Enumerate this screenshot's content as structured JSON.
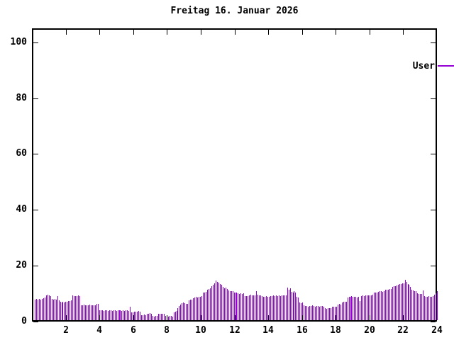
{
  "title": "Freitag 16. Januar 2026",
  "legend": {
    "label": "User",
    "color": "#9400d3",
    "position": "top-right"
  },
  "axes": {
    "y_ticks": [
      0,
      20,
      40,
      60,
      80,
      100
    ],
    "x_ticks": [
      2,
      4,
      6,
      8,
      10,
      12,
      14,
      16,
      18,
      20,
      22,
      24
    ],
    "xlim": [
      0,
      24
    ],
    "ylim": [
      0,
      105
    ]
  },
  "chart_data": {
    "type": "bar",
    "style": "impulses",
    "title": "Freitag 16. Januar 2026",
    "xlabel": "",
    "ylabel": "",
    "xlim": [
      0,
      24
    ],
    "ylim": [
      0,
      105
    ],
    "grid": false,
    "legend_position": "top-right",
    "x_unit": "hour-of-day",
    "x_step_hours": 0.0833333,
    "series": [
      {
        "name": "User",
        "color": "#9400d3",
        "values": [
          7.4,
          7.5,
          7.3,
          7.6,
          7.4,
          7.5,
          7.9,
          8.0,
          8.8,
          9.2,
          9.0,
          8.7,
          7.6,
          7.4,
          7.5,
          7.3,
          8.6,
          7.2,
          6.6,
          6.4,
          6.5,
          6.3,
          6.7,
          6.5,
          6.9,
          6.8,
          7.0,
          8.9,
          8.6,
          8.7,
          8.5,
          8.8,
          8.6,
          5.4,
          5.3,
          5.5,
          5.4,
          5.2,
          5.3,
          5.5,
          5.3,
          5.2,
          5.4,
          5.3,
          5.9,
          5.8,
          3.6,
          3.5,
          3.5,
          3.4,
          3.6,
          3.5,
          3.3,
          3.5,
          3.6,
          3.4,
          3.5,
          3.6,
          3.4,
          3.5,
          3.5,
          3.6,
          3.4,
          3.5,
          3.4,
          3.6,
          3.5,
          3.4,
          4.8,
          2.8,
          2.7,
          3.0,
          3.1,
          3.0,
          3.2,
          3.0,
          1.9,
          1.8,
          2.0,
          1.9,
          2.4,
          2.3,
          2.5,
          2.4,
          1.4,
          1.3,
          1.5,
          1.4,
          2.3,
          2.2,
          2.4,
          2.3,
          2.2,
          1.5,
          1.4,
          1.3,
          1.4,
          1.5,
          1.3,
          2.9,
          3.1,
          3.3,
          4.4,
          5.0,
          5.6,
          6.1,
          6.3,
          6.2,
          5.8,
          5.9,
          7.2,
          7.4,
          7.3,
          7.9,
          8.1,
          8.3,
          8.2,
          8.4,
          8.3,
          8.5,
          9.8,
          10.0,
          10.2,
          10.9,
          11.2,
          11.4,
          12.2,
          12.6,
          13.2,
          14.1,
          13.8,
          13.4,
          13.0,
          12.6,
          11.8,
          11.5,
          11.6,
          11.2,
          10.6,
          10.4,
          10.5,
          10.3,
          9.9,
          10.0,
          9.9,
          9.7,
          9.5,
          9.6,
          9.4,
          9.6,
          8.7,
          8.5,
          8.6,
          9.0,
          9.1,
          8.9,
          9.0,
          8.9,
          10.3,
          9.1,
          8.9,
          9.0,
          8.5,
          8.3,
          8.4,
          8.5,
          8.3,
          8.4,
          8.5,
          8.6,
          8.8,
          8.7,
          8.9,
          8.6,
          8.8,
          8.7,
          8.9,
          8.8,
          9.0,
          8.9,
          11.6,
          10.9,
          11.4,
          10.2,
          10.0,
          10.4,
          9.9,
          8.3,
          8.1,
          6.4,
          6.2,
          6.3,
          5.2,
          5.0,
          5.1,
          4.9,
          5.1,
          5.0,
          5.2,
          5.0,
          4.9,
          5.1,
          5.0,
          4.9,
          5.0,
          5.1,
          4.9,
          4.3,
          4.1,
          4.2,
          4.4,
          4.2,
          4.7,
          4.9,
          4.8,
          4.7,
          5.6,
          5.8,
          5.7,
          6.4,
          6.6,
          6.5,
          6.7,
          8.2,
          8.4,
          8.3,
          8.5,
          8.4,
          8.3,
          8.4,
          8.2,
          8.4,
          6.9,
          8.6,
          8.8,
          8.7,
          8.9,
          8.8,
          9.0,
          8.9,
          9.0,
          9.1,
          9.8,
          10.0,
          9.9,
          10.1,
          10.3,
          10.4,
          10.2,
          10.5,
          10.8,
          11.0,
          11.0,
          11.2,
          11.1,
          12.0,
          12.3,
          12.2,
          12.5,
          12.8,
          13.0,
          12.9,
          13.1,
          13.3,
          14.5,
          13.6,
          12.9,
          12.6,
          12.0,
          11.0,
          10.7,
          10.5,
          10.3,
          9.6,
          9.4,
          9.5,
          9.4,
          10.7,
          8.5,
          8.4,
          8.3,
          8.5,
          8.4,
          8.3,
          8.6,
          9.2,
          9.6,
          10.3
        ]
      }
    ]
  }
}
